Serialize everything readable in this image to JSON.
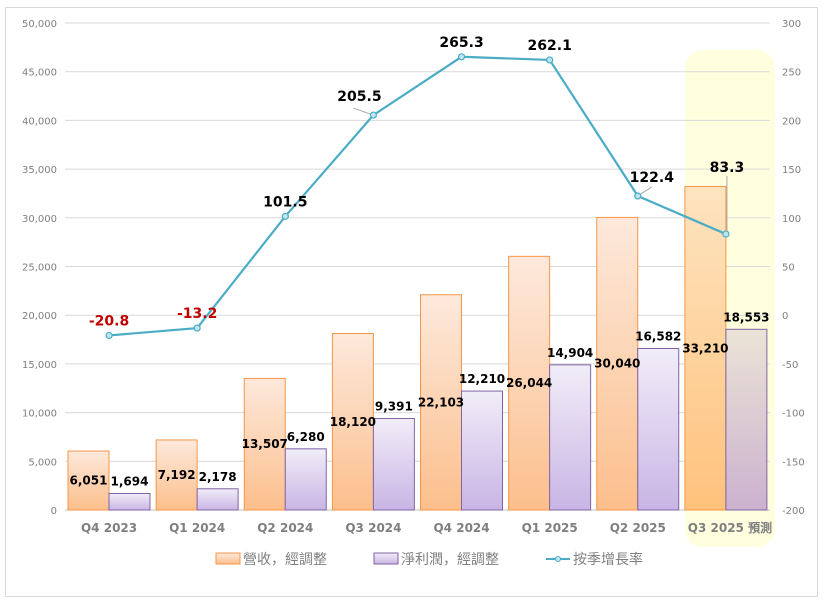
{
  "chart_data": {
    "type": "bar+line",
    "categories": [
      "Q4 2023",
      "Q1 2024",
      "Q2 2024",
      "Q3 2024",
      "Q4 2024",
      "Q1 2025",
      "Q2 2025",
      "Q3 2025 預測"
    ],
    "series": [
      {
        "name": "營收，經調整",
        "type": "bar",
        "axis": "left",
        "values": [
          6051,
          7192,
          13507,
          18120,
          22103,
          26044,
          30040,
          33210
        ],
        "labels": [
          "6,051",
          "7,192",
          "13,507",
          "18,120",
          "22,103",
          "26,044",
          "30,040",
          "33,210"
        ],
        "color": "#f79646"
      },
      {
        "name": "淨利潤，經調整",
        "type": "bar",
        "axis": "left",
        "values": [
          1694,
          2178,
          6280,
          9391,
          12210,
          14904,
          16582,
          18553
        ],
        "labels": [
          "1,694",
          "2,178",
          "6,280",
          "9,391",
          "12,210",
          "14,904",
          "16,582",
          "18,553"
        ],
        "color": "#8064a2"
      },
      {
        "name": "按季增長率",
        "type": "line",
        "axis": "right",
        "values": [
          -20.8,
          -13.2,
          101.5,
          205.5,
          265.3,
          262.1,
          122.4,
          83.3
        ],
        "labels": [
          "-20.8",
          "-13.2",
          "101.5",
          "205.5",
          "265.3",
          "262.1",
          "122.4",
          "83.3"
        ],
        "color": "#4bacc6",
        "negative_label_color": "#c00000"
      }
    ],
    "y_left": {
      "range": [
        0,
        50000
      ],
      "ticks": [
        "0",
        "5,000",
        "10,000",
        "15,000",
        "20,000",
        "25,000",
        "30,000",
        "35,000",
        "40,000",
        "45,000",
        "50,000"
      ]
    },
    "y_right": {
      "range": [
        -200,
        300
      ],
      "ticks": [
        "-200",
        "-150",
        "-100",
        "-50",
        "0",
        "50",
        "100",
        "150",
        "200",
        "250",
        "300"
      ]
    },
    "highlighted_category": "Q3 2025 預測",
    "highlight_color": "#ffffe0",
    "grid": true,
    "legend": "bottom"
  }
}
